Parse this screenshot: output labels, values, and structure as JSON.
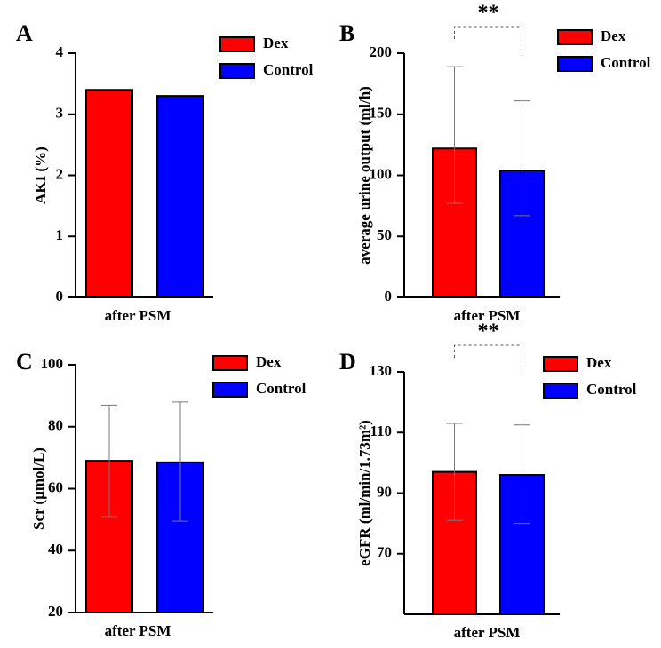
{
  "chart_data": [
    {
      "type": "bar",
      "panel": "A",
      "ylabel": "AKI (%)",
      "categories": [
        "after PSM"
      ],
      "series": [
        {
          "name": "Dex",
          "color": "#ff0000",
          "values": [
            3.4
          ]
        },
        {
          "name": "Control",
          "color": "#0000ff",
          "values": [
            3.3
          ]
        }
      ],
      "ylim": [
        0,
        4
      ],
      "yticks": [
        0,
        1,
        2,
        3,
        4
      ]
    },
    {
      "type": "bar",
      "panel": "B",
      "ylabel": "average urine output (ml/h)",
      "categories": [
        "after PSM"
      ],
      "annotation": "**",
      "series": [
        {
          "name": "Dex",
          "color": "#ff0000",
          "values": [
            122
          ],
          "error_high": [
            189
          ],
          "error_low": [
            77
          ]
        },
        {
          "name": "Control",
          "color": "#0000ff",
          "values": [
            104
          ],
          "error_high": [
            161
          ],
          "error_low": [
            67
          ]
        }
      ],
      "ylim": [
        0,
        200
      ],
      "yticks": [
        0,
        50,
        100,
        150,
        200
      ]
    },
    {
      "type": "bar",
      "panel": "C",
      "ylabel": "Scr (μmol/L)",
      "categories": [
        "after PSM"
      ],
      "series": [
        {
          "name": "Dex",
          "color": "#ff0000",
          "values": [
            69
          ],
          "error_high": [
            87
          ],
          "error_low": [
            51
          ]
        },
        {
          "name": "Control",
          "color": "#0000ff",
          "values": [
            68.5
          ],
          "error_high": [
            88
          ],
          "error_low": [
            49.5
          ]
        }
      ],
      "ylim": [
        20,
        100
      ],
      "yticks": [
        20,
        40,
        60,
        80,
        100
      ]
    },
    {
      "type": "bar",
      "panel": "D",
      "ylabel": "eGFR (ml/min/1.73m²)",
      "categories": [
        "after PSM"
      ],
      "annotation": "**",
      "series": [
        {
          "name": "Dex",
          "color": "#ff0000",
          "values": [
            97
          ],
          "error_high": [
            113
          ],
          "error_low": [
            81
          ]
        },
        {
          "name": "Control",
          "color": "#0000ff",
          "values": [
            96
          ],
          "error_high": [
            112.5
          ],
          "error_low": [
            80
          ]
        }
      ],
      "ylim": [
        50,
        130
      ],
      "yticks": [
        70,
        90,
        110,
        130
      ]
    }
  ]
}
